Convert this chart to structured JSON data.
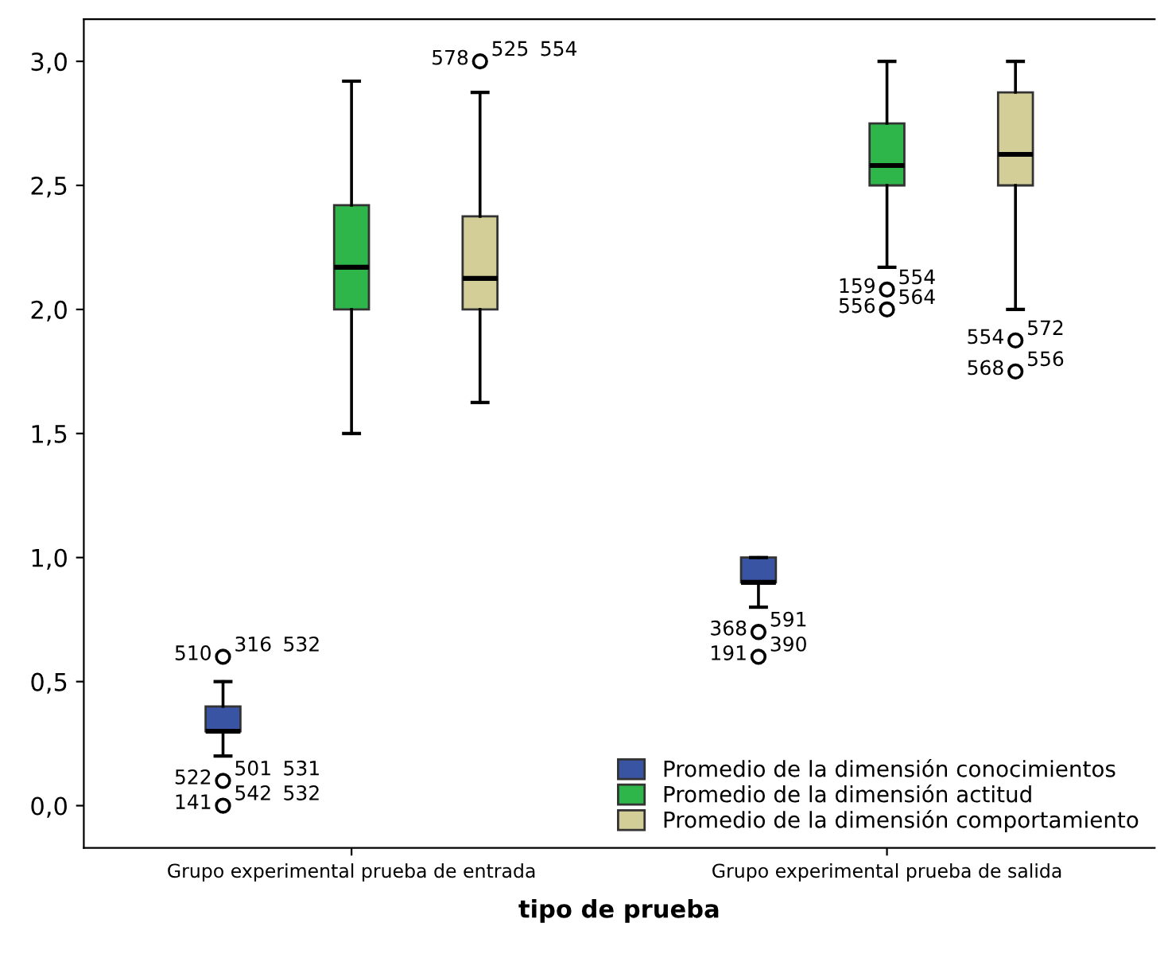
{
  "chart_data": {
    "type": "box",
    "xlabel": "tipo de prueba",
    "categories": [
      "Grupo experimental prueba de entrada",
      "Grupo experimental prueba de salida"
    ],
    "series": [
      {
        "name": "Promedio de la dimensión conocimientos",
        "color": "#3a54a4",
        "boxes": [
          {
            "low": 0.2,
            "q1": 0.3,
            "median": 0.3,
            "q3": 0.4,
            "high": 0.5,
            "outliers": [
              0.6,
              0.1,
              0.0
            ]
          },
          {
            "low": 0.8,
            "q1": 0.9,
            "median": 0.9,
            "q3": 1.0,
            "high": 1.0,
            "outliers": [
              0.7,
              0.6
            ]
          }
        ]
      },
      {
        "name": "Promedio de la dimensión actitud",
        "color": "#2fb64a",
        "boxes": [
          {
            "low": 1.5,
            "q1": 2.0,
            "median": 2.17,
            "q3": 2.42,
            "high": 2.92
          },
          {
            "low": 2.17,
            "q1": 2.5,
            "median": 2.58,
            "q3": 2.75,
            "high": 3.0,
            "outliers": [
              2.08,
              2.0
            ]
          }
        ]
      },
      {
        "name": "Promedio de la dimensión comportamiento",
        "color": "#d3ce98",
        "boxes": [
          {
            "low": 1.625,
            "q1": 2.0,
            "median": 2.125,
            "q3": 2.375,
            "high": 2.875,
            "outliers": [
              3.0
            ]
          },
          {
            "low": 2.0,
            "q1": 2.5,
            "median": 2.625,
            "q3": 2.875,
            "high": 3.0,
            "outliers": [
              1.875,
              1.75
            ]
          }
        ]
      }
    ],
    "ylim": [
      -0.17,
      3.17
    ],
    "yticks": [
      {
        "value": 0,
        "label": "0,0"
      },
      {
        "value": 0.5,
        "label": "0,5"
      },
      {
        "value": 1,
        "label": "1,0"
      },
      {
        "value": 1.5,
        "label": "1,5"
      },
      {
        "value": 2,
        "label": "2,0"
      },
      {
        "value": 2.5,
        "label": "2,5"
      },
      {
        "value": 3,
        "label": "3,0"
      }
    ],
    "grid": false,
    "legend": "bottom right",
    "annotations": [
      "316",
      "510",
      "532",
      "501",
      "522",
      "531",
      "542",
      "141",
      "532",
      "525",
      "578",
      "554",
      "591",
      "368",
      "390",
      "191",
      "554",
      "159",
      "564",
      "556",
      "572",
      "554",
      "556",
      "568"
    ]
  }
}
